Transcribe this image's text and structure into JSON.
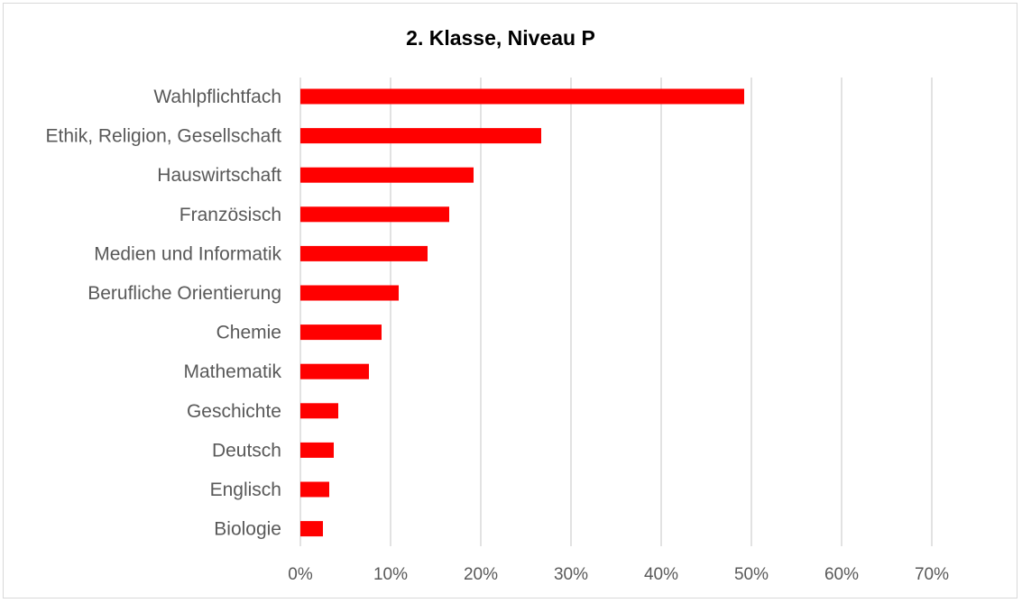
{
  "chart_data": {
    "type": "bar",
    "orientation": "horizontal",
    "title": "2. Klasse, Niveau P",
    "xlabel": "",
    "ylabel": "",
    "categories": [
      "Wahlpflichtfach",
      "Ethik, Religion, Gesellschaft",
      "Hauswirtschaft",
      "Französisch",
      "Medien und Informatik",
      "Berufliche Orientierung",
      "Chemie",
      "Mathematik",
      "Geschichte",
      "Deutsch",
      "Englisch",
      "Biologie"
    ],
    "values": [
      0.492,
      0.267,
      0.192,
      0.165,
      0.141,
      0.109,
      0.09,
      0.076,
      0.042,
      0.037,
      0.032,
      0.025
    ],
    "xlim": [
      0,
      0.7
    ],
    "x_ticks": [
      0,
      0.1,
      0.2,
      0.3,
      0.4,
      0.5,
      0.6,
      0.7
    ],
    "x_tick_labels": [
      "0%",
      "10%",
      "20%",
      "30%",
      "40%",
      "50%",
      "60%",
      "70%"
    ],
    "grid": "vertical",
    "legend": "none",
    "bar_color": "#ff0000"
  }
}
